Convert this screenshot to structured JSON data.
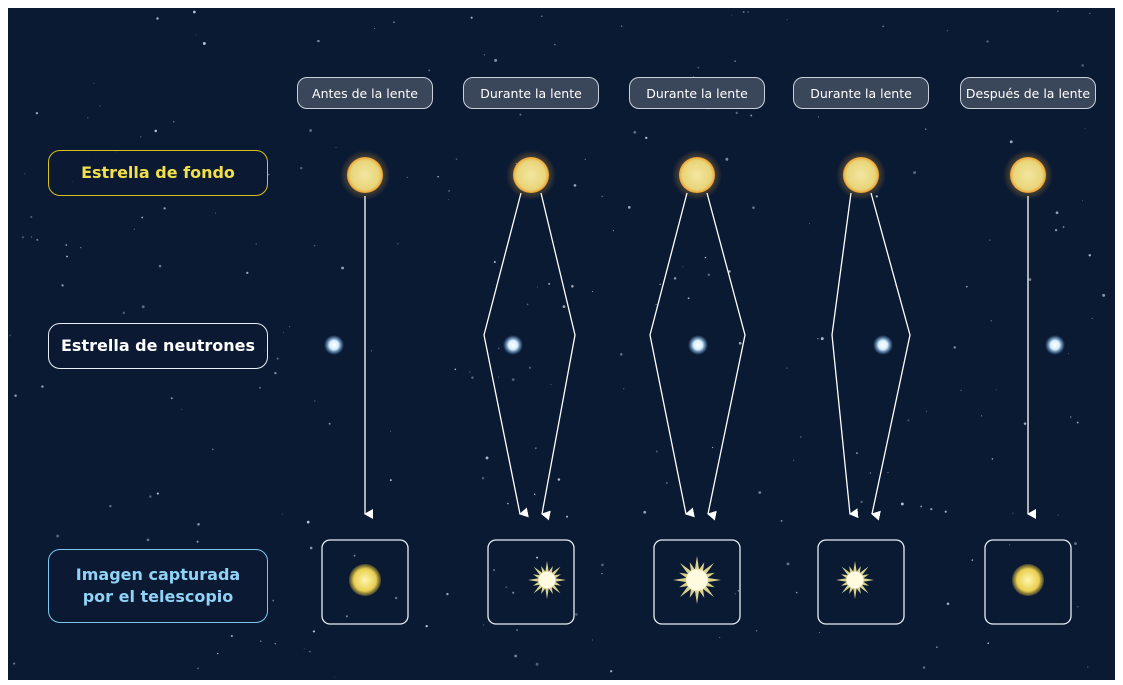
{
  "columns": [
    {
      "label": "Antes de la lente"
    },
    {
      "label": "Durante la lente"
    },
    {
      "label": "Durante la lente"
    },
    {
      "label": "Durante la lente"
    },
    {
      "label": "Después de la lente"
    }
  ],
  "rows": {
    "background_star": "Estrella de fondo",
    "neutron_star": "Estrella de neutrones",
    "captured_image": "Imagen capturada por el telescopio"
  }
}
